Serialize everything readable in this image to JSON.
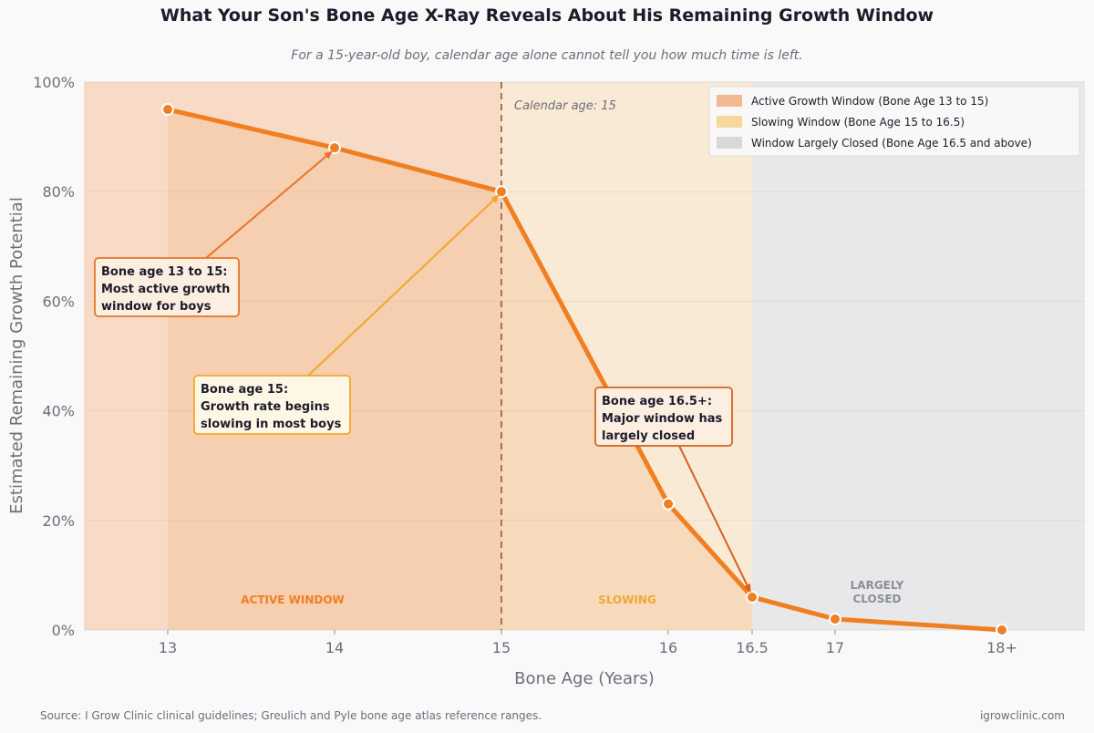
{
  "title": "What Your Son's Bone Age X-Ray Reveals About His Remaining Growth Window",
  "subtitle": "For a 15-year-old boy, calendar age alone cannot tell you how much time is left.",
  "footer": {
    "source": "Source: I Grow Clinic clinical guidelines; Greulich and Pyle bone age atlas reference ranges.",
    "site": "igrowclinic.com"
  },
  "chart_data": {
    "type": "line",
    "xlabel": "Bone Age (Years)",
    "ylabel": "Estimated Remaining Growth Potential",
    "xlim": [
      12.5,
      18.5
    ],
    "ylim": [
      0,
      100
    ],
    "x_ticks": [
      13,
      14,
      15,
      16,
      16.5,
      17,
      18
    ],
    "x_tick_labels": [
      "13",
      "14",
      "15",
      "16",
      "16.5",
      "17",
      "18+"
    ],
    "y_ticks": [
      0,
      20,
      40,
      60,
      80,
      100
    ],
    "y_tick_labels": [
      "0%",
      "20%",
      "40%",
      "60%",
      "80%",
      "100%"
    ],
    "grid": "horizontal",
    "legend_position": "top-right",
    "series": [
      {
        "x": [
          13,
          14,
          15,
          16,
          16.5,
          17,
          18
        ],
        "y": [
          95,
          88,
          80,
          23,
          6,
          2,
          0
        ],
        "color": "#f07f22"
      }
    ],
    "regions": [
      {
        "from": 12.5,
        "to": 15,
        "color": "#f6c6a5",
        "legend": "Active Growth Window (Bone Age 13 to 15)",
        "label": "ACTIVE WINDOW",
        "label_color": "#f07f22"
      },
      {
        "from": 15,
        "to": 16.5,
        "color": "#f8e0bc",
        "legend": "Slowing Window (Bone Age 15 to 16.5)",
        "label": "SLOWING",
        "label_color": "#f0a832"
      },
      {
        "from": 16.5,
        "to": 18.5,
        "color": "#e2e2e4",
        "legend": "Window Largely Closed (Bone Age 16.5 and above)",
        "label": "LARGELY CLOSED",
        "label_color": "#8a8f9a"
      }
    ],
    "reference_line": {
      "x": 15,
      "label": "Calendar age: 15",
      "color": "#a07552"
    },
    "annotations": [
      {
        "text": "Bone age 13 to 15: Most active growth window for boys",
        "target_x": 14,
        "target_y": 88,
        "color": "#e8742a",
        "bg": "#fdeee2"
      },
      {
        "text": "Bone age 15: Growth rate begins slowing in most boys",
        "target_x": 15,
        "target_y": 80,
        "color": "#f0a82a",
        "bg": "#fff7e6"
      },
      {
        "text": "Bone age 16.5+: Major window has largely closed",
        "target_x": 16.5,
        "target_y": 6,
        "color": "#d4621e",
        "bg": "#fdeee2"
      }
    ]
  }
}
